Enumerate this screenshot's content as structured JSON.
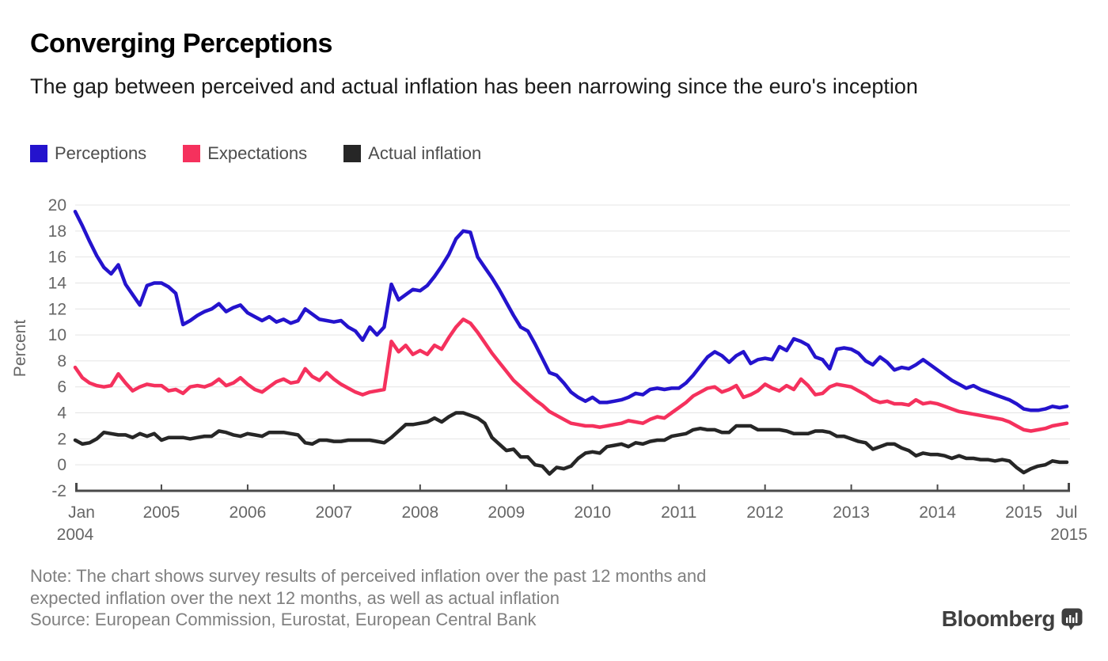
{
  "header": {
    "title": "Converging Perceptions",
    "subtitle": "The gap between perceived and actual inflation has been narrowing since the euro's inception"
  },
  "legend": {
    "items": [
      {
        "label": "Perceptions",
        "color": "#2413cd"
      },
      {
        "label": "Expectations",
        "color": "#f5315d"
      },
      {
        "label": "Actual inflation",
        "color": "#262626"
      }
    ]
  },
  "chart_data": {
    "type": "line",
    "title": "Converging Perceptions",
    "ylabel": "Percent",
    "xlabel": "",
    "ylim": [
      -2,
      20
    ],
    "yticks": [
      -2,
      0,
      2,
      4,
      6,
      8,
      10,
      12,
      14,
      16,
      18,
      20
    ],
    "grid": true,
    "legend_position": "top",
    "x_frequency": "monthly",
    "x_axis": {
      "start_label_line1": "Jan",
      "start_label_line2": "2004",
      "year_ticks": [
        "2005",
        "2006",
        "2007",
        "2008",
        "2009",
        "2010",
        "2011",
        "2012",
        "2013",
        "2014",
        "2015"
      ],
      "end_label_line1": "Jul",
      "end_label_line2": "2015"
    },
    "colors": {
      "gridline": "#e4e4e4",
      "axis_line": "#4a4a4a",
      "axis_text": "#666666"
    },
    "series": [
      {
        "name": "Perceptions",
        "color": "#2413cd",
        "values": [
          19.5,
          18.4,
          17.2,
          16.1,
          15.2,
          14.7,
          15.4,
          13.9,
          13.1,
          12.3,
          13.8,
          14.0,
          14.0,
          13.7,
          13.2,
          10.8,
          11.1,
          11.5,
          11.8,
          12.0,
          12.4,
          11.8,
          12.1,
          12.3,
          11.7,
          11.4,
          11.1,
          11.4,
          11.0,
          11.2,
          10.9,
          11.1,
          12.0,
          11.6,
          11.2,
          11.1,
          11.0,
          11.1,
          10.6,
          10.3,
          9.6,
          10.6,
          10.0,
          10.6,
          13.9,
          12.7,
          13.1,
          13.5,
          13.4,
          13.8,
          14.5,
          15.3,
          16.2,
          17.4,
          18.0,
          17.9,
          16.0,
          15.2,
          14.4,
          13.5,
          12.5,
          11.5,
          10.6,
          10.3,
          9.3,
          8.2,
          7.1,
          6.9,
          6.3,
          5.6,
          5.2,
          4.9,
          5.2,
          4.8,
          4.8,
          4.9,
          5.0,
          5.2,
          5.5,
          5.4,
          5.8,
          5.9,
          5.8,
          5.9,
          5.9,
          6.3,
          6.9,
          7.6,
          8.3,
          8.7,
          8.4,
          7.9,
          8.4,
          8.7,
          7.8,
          8.1,
          8.2,
          8.1,
          9.1,
          8.8,
          9.7,
          9.5,
          9.2,
          8.3,
          8.1,
          7.4,
          8.9,
          9.0,
          8.9,
          8.6,
          8.0,
          7.7,
          8.3,
          7.9,
          7.3,
          7.5,
          7.4,
          7.7,
          8.1,
          7.7,
          7.3,
          6.9,
          6.5,
          6.2,
          5.9,
          6.1,
          5.8,
          5.6,
          5.4,
          5.2,
          5.0,
          4.7,
          4.3,
          4.2,
          4.2,
          4.3,
          4.5,
          4.4,
          4.5
        ]
      },
      {
        "name": "Expectations",
        "color": "#f5315d",
        "values": [
          7.5,
          6.7,
          6.3,
          6.1,
          6.0,
          6.1,
          7.0,
          6.3,
          5.7,
          6.0,
          6.2,
          6.1,
          6.1,
          5.7,
          5.8,
          5.5,
          6.0,
          6.1,
          6.0,
          6.2,
          6.6,
          6.1,
          6.3,
          6.7,
          6.2,
          5.8,
          5.6,
          6.0,
          6.4,
          6.6,
          6.3,
          6.4,
          7.4,
          6.8,
          6.5,
          7.1,
          6.6,
          6.2,
          5.9,
          5.6,
          5.4,
          5.6,
          5.7,
          5.8,
          9.5,
          8.7,
          9.2,
          8.5,
          8.8,
          8.5,
          9.2,
          8.9,
          9.8,
          10.6,
          11.2,
          10.9,
          10.2,
          9.4,
          8.6,
          7.9,
          7.2,
          6.5,
          6.0,
          5.5,
          5.0,
          4.6,
          4.1,
          3.8,
          3.5,
          3.2,
          3.1,
          3.0,
          3.0,
          2.9,
          3.0,
          3.1,
          3.2,
          3.4,
          3.3,
          3.2,
          3.5,
          3.7,
          3.6,
          4.0,
          4.4,
          4.8,
          5.3,
          5.6,
          5.9,
          6.0,
          5.6,
          5.8,
          6.1,
          5.2,
          5.4,
          5.7,
          6.2,
          5.9,
          5.7,
          6.1,
          5.8,
          6.6,
          6.1,
          5.4,
          5.5,
          6.0,
          6.2,
          6.1,
          6.0,
          5.7,
          5.4,
          5.0,
          4.8,
          4.9,
          4.7,
          4.7,
          4.6,
          5.0,
          4.7,
          4.8,
          4.7,
          4.5,
          4.3,
          4.1,
          4.0,
          3.9,
          3.8,
          3.7,
          3.6,
          3.5,
          3.3,
          3.0,
          2.7,
          2.6,
          2.7,
          2.8,
          3.0,
          3.1,
          3.2
        ]
      },
      {
        "name": "Actual inflation",
        "color": "#262626",
        "values": [
          1.9,
          1.6,
          1.7,
          2.0,
          2.5,
          2.4,
          2.3,
          2.3,
          2.1,
          2.4,
          2.2,
          2.4,
          1.9,
          2.1,
          2.1,
          2.1,
          2.0,
          2.1,
          2.2,
          2.2,
          2.6,
          2.5,
          2.3,
          2.2,
          2.4,
          2.3,
          2.2,
          2.5,
          2.5,
          2.5,
          2.4,
          2.3,
          1.7,
          1.6,
          1.9,
          1.9,
          1.8,
          1.8,
          1.9,
          1.9,
          1.9,
          1.9,
          1.8,
          1.7,
          2.1,
          2.6,
          3.1,
          3.1,
          3.2,
          3.3,
          3.6,
          3.3,
          3.7,
          4.0,
          4.0,
          3.8,
          3.6,
          3.2,
          2.1,
          1.6,
          1.1,
          1.2,
          0.6,
          0.6,
          0.0,
          -0.1,
          -0.7,
          -0.2,
          -0.3,
          -0.1,
          0.5,
          0.9,
          1.0,
          0.9,
          1.4,
          1.5,
          1.6,
          1.4,
          1.7,
          1.6,
          1.8,
          1.9,
          1.9,
          2.2,
          2.3,
          2.4,
          2.7,
          2.8,
          2.7,
          2.7,
          2.5,
          2.5,
          3.0,
          3.0,
          3.0,
          2.7,
          2.7,
          2.7,
          2.7,
          2.6,
          2.4,
          2.4,
          2.4,
          2.6,
          2.6,
          2.5,
          2.2,
          2.2,
          2.0,
          1.8,
          1.7,
          1.2,
          1.4,
          1.6,
          1.6,
          1.3,
          1.1,
          0.7,
          0.9,
          0.8,
          0.8,
          0.7,
          0.5,
          0.7,
          0.5,
          0.5,
          0.4,
          0.4,
          0.3,
          0.4,
          0.3,
          -0.2,
          -0.6,
          -0.3,
          -0.1,
          0.0,
          0.3,
          0.2,
          0.2
        ]
      }
    ]
  },
  "footer": {
    "note_line1": "Note: The chart shows survey results of perceived inflation over the past 12 months and",
    "note_line2": "expected inflation over the next 12 months, as well as actual inflation",
    "source": "Source: European Commission, Eurostat, European Central Bank"
  },
  "branding": {
    "logo_text": "Bloomberg"
  }
}
